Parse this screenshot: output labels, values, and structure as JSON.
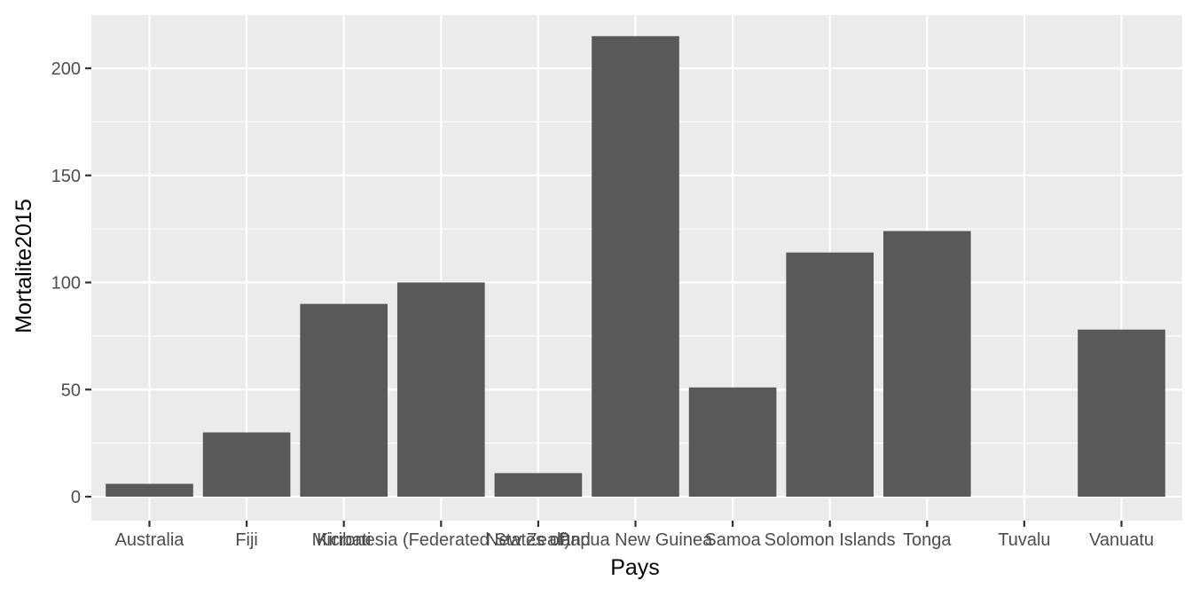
{
  "chart_data": {
    "type": "bar",
    "title": "",
    "xlabel": "Pays",
    "ylabel": "Mortalite2015",
    "categories": [
      "Australia",
      "Fiji",
      "Kiribati",
      "Micronesia (Federated States of)",
      "New Zealand",
      "Papua New Guinea",
      "Samoa",
      "Solomon Islands",
      "Tonga",
      "Tuvalu",
      "Vanuatu"
    ],
    "values": [
      6,
      30,
      90,
      100,
      11,
      215,
      51,
      114,
      124,
      0,
      78
    ],
    "ylim": [
      0,
      225
    ],
    "yticks": [
      0,
      50,
      100,
      150,
      200
    ],
    "grid": true,
    "colors": {
      "panel": "#ebebeb",
      "grid": "#ffffff",
      "bar": "#595959",
      "tick": "#333333"
    }
  }
}
